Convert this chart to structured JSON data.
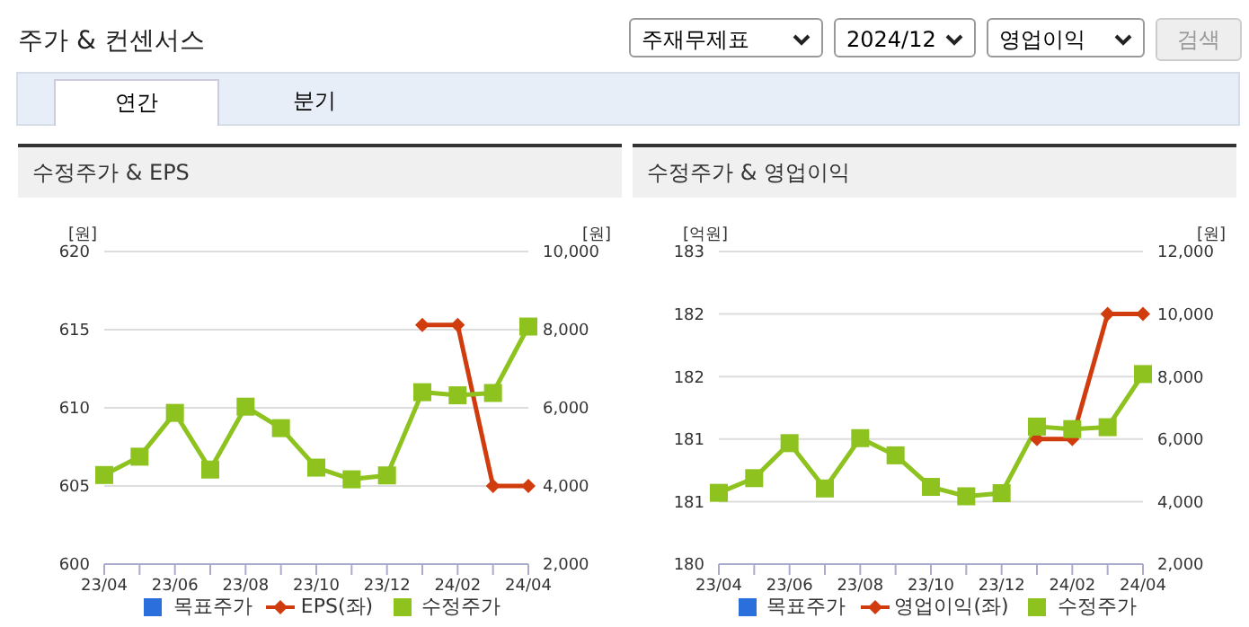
{
  "chart_data": [
    {
      "type": "other",
      "title": "주가 & 컨센서스",
      "annotations": [
        "주재무제표",
        "2024/12",
        "영업이익",
        "검색",
        "연간",
        "분기"
      ]
    },
    {
      "type": "line",
      "title": "수정주가 & EPS",
      "ylabel": "[원]",
      "y2label": "[원]",
      "categories": [
        "23/04",
        null,
        "23/06",
        null,
        "23/08",
        null,
        "23/10",
        null,
        "23/12",
        null,
        "24/02",
        null,
        "24/04"
      ],
      "series": [
        {
          "name": "목표주가",
          "color": "#2a6fdb",
          "marker": "square",
          "values": [
            null,
            null,
            null,
            null,
            null,
            null,
            null,
            null,
            null,
            null,
            null,
            null,
            null
          ]
        },
        {
          "name": "EPS(좌)",
          "color": "#d03c0e",
          "marker": "diamond",
          "values": [
            null,
            null,
            null,
            null,
            null,
            null,
            null,
            null,
            null,
            615.3,
            615.3,
            605,
            605
          ]
        },
        {
          "name": "수정주가",
          "color": "#8dc21f",
          "marker": "square",
          "axis": "y2",
          "values": [
            4280,
            4750,
            5870,
            4420,
            6030,
            5480,
            4470,
            4170,
            4270,
            6400,
            6320,
            6380,
            8080
          ]
        }
      ],
      "ylim": [
        600,
        620
      ],
      "yticks": [
        600,
        605,
        610,
        615,
        620
      ],
      "y2lim": [
        2000,
        10000
      ],
      "y2ticks": [
        {
          "value": 2000,
          "label": "2,000"
        },
        {
          "value": 4000,
          "label": "4,000"
        },
        {
          "value": 6000,
          "label": "6,000"
        },
        {
          "value": 8000,
          "label": "8,000"
        },
        {
          "value": 10000,
          "label": "10,000"
        }
      ],
      "grid": "y",
      "legend": "bottom"
    },
    {
      "type": "line",
      "title": "수정주가 & 영업이익",
      "ylabel": "[억원]",
      "y2label": "[원]",
      "categories": [
        "23/04",
        null,
        "23/06",
        null,
        "23/08",
        null,
        "23/10",
        null,
        "23/12",
        null,
        "24/02",
        null,
        "24/04"
      ],
      "series": [
        {
          "name": "목표주가",
          "color": "#2a6fdb",
          "marker": "square",
          "values": [
            null,
            null,
            null,
            null,
            null,
            null,
            null,
            null,
            null,
            null,
            null,
            null,
            null
          ]
        },
        {
          "name": "영업이익(좌)",
          "color": "#d03c0e",
          "marker": "diamond",
          "values": [
            null,
            null,
            null,
            null,
            null,
            null,
            null,
            null,
            null,
            181.2,
            181.2,
            182.4,
            182.4
          ]
        },
        {
          "name": "수정주가",
          "color": "#8dc21f",
          "marker": "square",
          "axis": "y2",
          "values": [
            4280,
            4750,
            5870,
            4420,
            6030,
            5480,
            4470,
            4170,
            4270,
            6400,
            6320,
            6380,
            8080
          ]
        }
      ],
      "ylim": [
        180,
        183
      ],
      "yticks": [
        {
          "value": 180,
          "label": "180"
        },
        {
          "value": 180.6,
          "label": "181"
        },
        {
          "value": 181.2,
          "label": "181"
        },
        {
          "value": 181.8,
          "label": "182"
        },
        {
          "value": 182.4,
          "label": "182"
        },
        {
          "value": 183,
          "label": "183"
        }
      ],
      "y2lim": [
        2000,
        12000
      ],
      "y2ticks": [
        {
          "value": 2000,
          "label": "2,000"
        },
        {
          "value": 4000,
          "label": "4,000"
        },
        {
          "value": 6000,
          "label": "6,000"
        },
        {
          "value": 8000,
          "label": "8,000"
        },
        {
          "value": 10000,
          "label": "10,000"
        },
        {
          "value": 12000,
          "label": "12,000"
        }
      ],
      "grid": "y",
      "legend": "bottom"
    }
  ]
}
